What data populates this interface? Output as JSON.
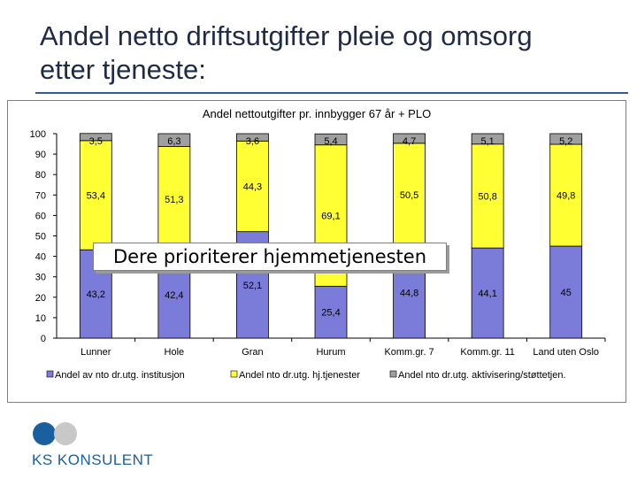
{
  "slide": {
    "title_line1": "Andel netto driftsutgifter pleie og omsorg",
    "title_line2": "etter tjeneste:",
    "callout": "Dere prioriterer hjemmetjenesten",
    "logo_text": "KS KONSULENT"
  },
  "colors": {
    "institusjon": "#7b7bd9",
    "hjemmetjenester": "#ffff33",
    "aktivisering": "#9f9f9f",
    "title": "#1f2a44",
    "logo": "#1a5f9e"
  },
  "chart_data": {
    "type": "bar",
    "stacked": true,
    "title": "Andel nettoutgifter pr. innbygger 67 år + PLO",
    "xlabel": "",
    "ylabel": "",
    "ylim": [
      0,
      100
    ],
    "yticks": [
      0,
      10,
      20,
      30,
      40,
      50,
      60,
      70,
      80,
      90,
      100
    ],
    "grid": false,
    "legend_position": "bottom",
    "categories": [
      "Lunner",
      "Hole",
      "Gran",
      "Hurum",
      "Komm.gr. 7",
      "Komm.gr. 11",
      "Land uten Oslo"
    ],
    "series": [
      {
        "name": "Andel av nto dr.utg. institusjon",
        "values": [
          43.2,
          42.4,
          52.1,
          25.4,
          44.8,
          44.1,
          45
        ]
      },
      {
        "name": "Andel nto dr.utg. hj.tjenester",
        "values": [
          53.4,
          51.3,
          44.3,
          69.1,
          50.5,
          50.8,
          49.8
        ]
      },
      {
        "name": "Andel nto dr.utg. aktivisering/støttetjen.",
        "values": [
          3.5,
          6.3,
          3.6,
          5.4,
          4.7,
          5.1,
          5.2
        ]
      }
    ],
    "data_labels": [
      [
        "43,2",
        "42,4",
        "52,1",
        "25,4",
        "44,8",
        "44,1",
        "45"
      ],
      [
        "53,4",
        "51,3",
        "44,3",
        "69,1",
        "50,5",
        "50,8",
        "49,8"
      ],
      [
        "3,5",
        "6,3",
        "3,6",
        "5,4",
        "4,7",
        "5,1",
        "5,2"
      ]
    ]
  }
}
